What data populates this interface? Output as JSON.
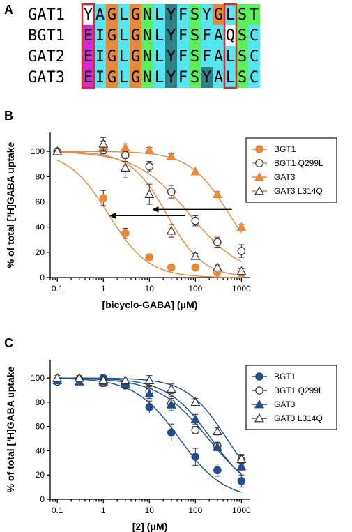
{
  "panel_a": {
    "letter": "A",
    "rows": [
      {
        "name": "GAT1",
        "seq": "YAGLGNLYFSYGLST"
      },
      {
        "name": "BGT1",
        "seq": "EIGLGNLYFSFAQSC"
      },
      {
        "name": "GAT2",
        "seq": "EIGLGNLYFSFALSC"
      },
      {
        "name": "GAT3",
        "seq": "EIGLGNLYFSYALSC"
      }
    ],
    "boxed_columns": [
      0,
      12
    ],
    "colors": {
      "cyan": "#55e6f0",
      "orange": "#e8893a",
      "green": "#5cf05a",
      "teal": "#2e7f86",
      "magenta": "#d52ad8",
      "white": "#ffffff",
      "box": "#e0272e"
    },
    "color_map": [
      [
        "white",
        "cyan",
        "orange",
        "cyan",
        "orange",
        "green",
        "cyan",
        "teal",
        "cyan",
        "green",
        "cyan",
        "orange",
        "cyan",
        "green",
        "green"
      ],
      [
        "magenta",
        "cyan",
        "orange",
        "cyan",
        "orange",
        "green",
        "cyan",
        "teal",
        "cyan",
        "green",
        "cyan",
        "cyan",
        "white",
        "green",
        "cyan"
      ],
      [
        "magenta",
        "cyan",
        "orange",
        "cyan",
        "orange",
        "green",
        "cyan",
        "teal",
        "cyan",
        "green",
        "cyan",
        "cyan",
        "cyan",
        "green",
        "cyan"
      ],
      [
        "magenta",
        "cyan",
        "orange",
        "cyan",
        "orange",
        "green",
        "cyan",
        "teal",
        "cyan",
        "green",
        "teal",
        "cyan",
        "cyan",
        "green",
        "cyan"
      ]
    ]
  },
  "chart_data": [
    {
      "panel": "B",
      "type": "scatter",
      "xscale": "log",
      "xlabel": "[bicyclo-GABA] (μM)",
      "ylabel": "% of total [³H]GABA uptake",
      "xlim": [
        0.07,
        1500
      ],
      "ylim": [
        0,
        115
      ],
      "xticks": [
        "0.1",
        "1",
        "10",
        "100",
        "1000"
      ],
      "yticks": [
        "0",
        "20",
        "40",
        "60",
        "80",
        "100"
      ],
      "legend": "top-right",
      "color": "#e8893a",
      "series": [
        {
          "name": "BGT1",
          "marker": "circle",
          "filled": true,
          "points": [
            [
              0.1,
              100,
              1
            ],
            [
              1,
              63,
              6
            ],
            [
              3,
              35,
              4
            ],
            [
              10,
              16,
              2
            ],
            [
              30,
              8,
              1
            ],
            [
              100,
              8,
              2
            ],
            [
              300,
              4,
              1
            ],
            [
              1000,
              3,
              1
            ]
          ]
        },
        {
          "name": "BGT1 Q299L",
          "marker": "circle",
          "filled": false,
          "points": [
            [
              0.1,
              100,
              1
            ],
            [
              1,
              101,
              3
            ],
            [
              3,
              97,
              5
            ],
            [
              10,
              88,
              4
            ],
            [
              30,
              68,
              5
            ],
            [
              100,
              45,
              4
            ],
            [
              300,
              28,
              4
            ],
            [
              1000,
              21,
              5
            ]
          ]
        },
        {
          "name": "GAT3",
          "marker": "triangle",
          "filled": true,
          "points": [
            [
              0.1,
              100,
              1
            ],
            [
              1,
              104,
              4
            ],
            [
              3,
              103,
              3
            ],
            [
              10,
              101,
              2
            ],
            [
              30,
              96,
              2
            ],
            [
              100,
              84,
              2
            ],
            [
              300,
              66,
              2
            ],
            [
              1000,
              40,
              2
            ]
          ]
        },
        {
          "name": "GAT3 L314Q",
          "marker": "triangle",
          "filled": false,
          "points": [
            [
              0.1,
              100,
              1
            ],
            [
              1,
              106,
              5
            ],
            [
              3,
              87,
              8
            ],
            [
              10,
              66,
              8
            ],
            [
              30,
              37,
              5
            ],
            [
              100,
              17,
              2
            ],
            [
              300,
              8,
              2
            ],
            [
              1000,
              5,
              2
            ]
          ]
        }
      ],
      "fits": [
        {
          "ic50": 1.3,
          "hill": 1.0
        },
        {
          "ic50": 75,
          "hill": 0.75
        },
        {
          "ic50": 550,
          "hill": 1.0
        },
        {
          "ic50": 24,
          "hill": 1.1
        }
      ],
      "arrows": [
        {
          "from_x": 12,
          "from_y": 54,
          "to_x": 620,
          "to_y": 54
        },
        {
          "from_x": 1.4,
          "from_y": 49,
          "to_x": 60,
          "to_y": 49
        }
      ]
    },
    {
      "panel": "C",
      "type": "scatter",
      "xscale": "log",
      "xlabel": "[2] (μM)",
      "ylabel": "% of total [³H]GABA uptake",
      "xlim": [
        0.07,
        1500
      ],
      "ylim": [
        0,
        115
      ],
      "xticks": [
        "0.1",
        "1",
        "10",
        "100",
        "1000"
      ],
      "yticks": [
        "0",
        "20",
        "40",
        "60",
        "80",
        "100"
      ],
      "legend": "top-right",
      "color": "#1f4f8f",
      "series": [
        {
          "name": "BGT1",
          "marker": "circle",
          "filled": true,
          "points": [
            [
              0.1,
              97,
              2
            ],
            [
              0.3,
              99,
              2
            ],
            [
              1,
              100,
              2
            ],
            [
              3,
              94,
              2
            ],
            [
              10,
              76,
              5
            ],
            [
              30,
              55,
              7
            ],
            [
              100,
              35,
              7
            ],
            [
              300,
              24,
              5
            ],
            [
              1000,
              15,
              5
            ]
          ]
        },
        {
          "name": "BGT1 Q299L",
          "marker": "circle",
          "filled": false,
          "points": [
            [
              0.1,
              97,
              2
            ],
            [
              0.3,
              99,
              2
            ],
            [
              1,
              96,
              3
            ],
            [
              3,
              94,
              3
            ],
            [
              10,
              89,
              4
            ],
            [
              30,
              79,
              6
            ],
            [
              100,
              57,
              3
            ],
            [
              300,
              44,
              3
            ],
            [
              1000,
              32,
              4
            ]
          ]
        },
        {
          "name": "GAT3",
          "marker": "triangle",
          "filled": true,
          "points": [
            [
              0.1,
              98,
              2
            ],
            [
              0.3,
              97,
              2
            ],
            [
              1,
              97,
              2
            ],
            [
              3,
              95,
              3
            ],
            [
              10,
              87,
              4
            ],
            [
              30,
              78,
              5
            ],
            [
              100,
              66,
              4
            ],
            [
              300,
              43,
              3
            ],
            [
              1000,
              27,
              3
            ]
          ]
        },
        {
          "name": "GAT3 L314Q",
          "marker": "triangle",
          "filled": false,
          "points": [
            [
              0.1,
              100,
              2
            ],
            [
              0.3,
              100,
              2
            ],
            [
              1,
              98,
              3
            ],
            [
              3,
              98,
              3
            ],
            [
              10,
              98,
              4
            ],
            [
              30,
              91,
              4
            ],
            [
              100,
              80,
              3
            ],
            [
              300,
              56,
              3
            ],
            [
              1000,
              33,
              4
            ]
          ]
        }
      ],
      "fits": [
        {
          "ic50": 45,
          "hill": 0.9
        },
        {
          "ic50": 190,
          "hill": 0.8
        },
        {
          "ic50": 220,
          "hill": 0.9
        },
        {
          "ic50": 480,
          "hill": 1.0
        }
      ],
      "arrows": []
    }
  ]
}
